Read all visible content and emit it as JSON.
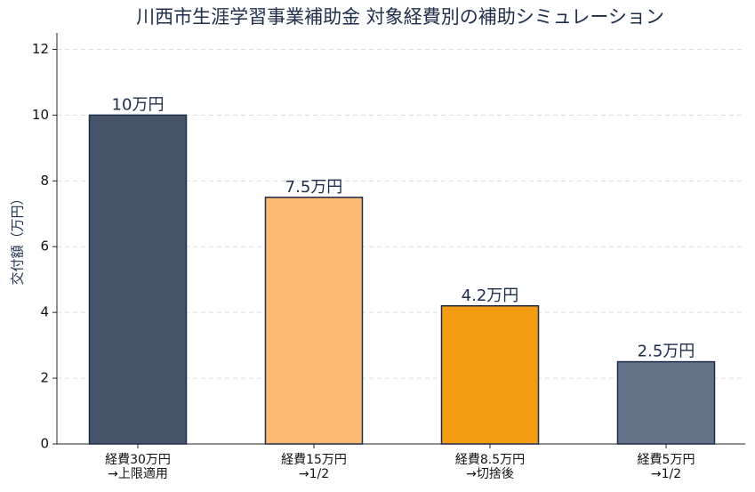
{
  "chart_data": {
    "type": "bar",
    "title": "川西市生涯学習事業補助金 対象経費別の補助シミュレーション",
    "y_label": "交付額（万円）",
    "categories": [
      "経費30万円\n→上限適用",
      "経費15万円\n→1/2",
      "経費8.5万円\n→切捨後",
      "経費5万円\n→1/2"
    ],
    "values": [
      10,
      7.5,
      4.2,
      2.5
    ],
    "value_labels": [
      "10万円",
      "7.5万円",
      "4.2万円",
      "2.5万円"
    ],
    "colors": [
      "#465569",
      "#fdba74",
      "#f39c12",
      "#64748b"
    ],
    "edge_color": "#1e2d4a",
    "ylim": [
      0,
      12.5
    ],
    "yticks": [
      0,
      2,
      4,
      6,
      8,
      10,
      12
    ],
    "grid": true
  }
}
